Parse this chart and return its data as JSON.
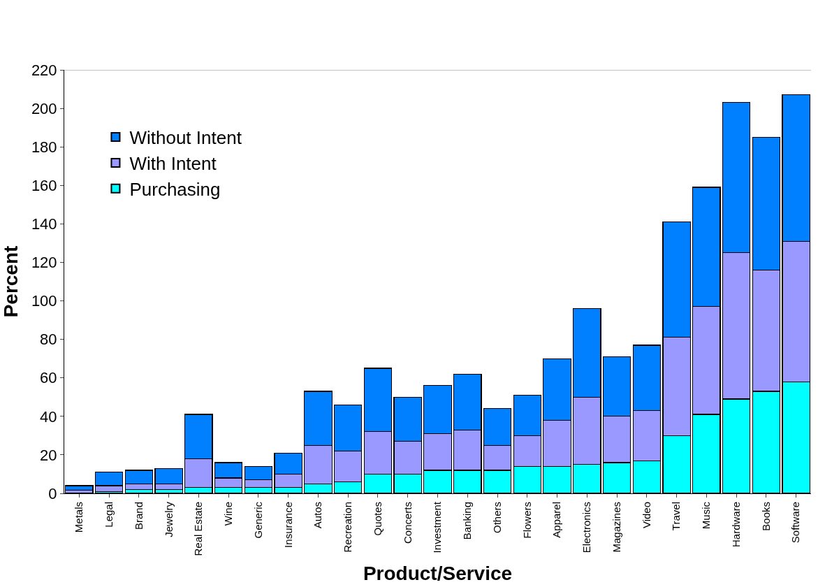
{
  "chart_data": {
    "type": "bar",
    "stacked": true,
    "xlabel": "Product/Service",
    "ylabel": "Percent",
    "categories": [
      "Metals",
      "Legal",
      "Brand",
      "Jewelry",
      "Real Estate",
      "Wine",
      "Generic",
      "Insurance",
      "Autos",
      "Recreation",
      "Quotes",
      "Concerts",
      "Investment",
      "Banking",
      "Others",
      "Flowers",
      "Apparel",
      "Electronics",
      "Magazines",
      "Video",
      "Travel",
      "Music",
      "Hardware",
      "Books",
      "Software"
    ],
    "series": [
      {
        "name": "Purchasing",
        "color": "#00ffff",
        "values": [
          null,
          1,
          2,
          2,
          3,
          3,
          3,
          3,
          5,
          6,
          10,
          10,
          12,
          12,
          12,
          14,
          14,
          15,
          16,
          17,
          30,
          41,
          49,
          53,
          58
        ]
      },
      {
        "name": "With Intent",
        "color": "#9999ff",
        "values": [
          1.5,
          3,
          3,
          3,
          15,
          5,
          4,
          7,
          20,
          16,
          22,
          17,
          19,
          21,
          13,
          16,
          24,
          35,
          24,
          26,
          51,
          56,
          76,
          63,
          73
        ]
      },
      {
        "name": "Without Intent",
        "color": "#0080ff",
        "values": [
          2.5,
          7,
          7,
          8,
          23,
          8,
          7,
          11,
          28,
          24,
          33,
          23,
          25,
          29,
          19,
          21,
          32,
          46,
          31,
          34,
          60,
          62,
          78,
          69,
          76
        ]
      }
    ],
    "ylim": [
      0,
      220
    ],
    "yticks": [
      0,
      20,
      40,
      60,
      80,
      100,
      120,
      140,
      160,
      180,
      200,
      220
    ],
    "grid": false,
    "legend": "top left"
  }
}
